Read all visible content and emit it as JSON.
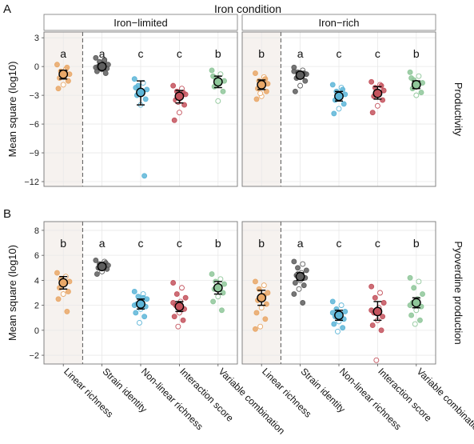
{
  "figure": {
    "header": "Iron condition",
    "panel_letters": [
      "A",
      "B"
    ],
    "x_categories": [
      "Linear richness",
      "Strain identity",
      "Non-linear richness",
      "Interaction score",
      "Variable combination"
    ],
    "colors": {
      "Linear richness": "#e9a868",
      "Strain identity": "#5e5e5e",
      "Non-linear richness": "#5eb6d8",
      "Interaction score": "#c4545e",
      "Variable combination": "#8fc79a",
      "highlight": "#f6f2ef",
      "grid": "#e8e8e8",
      "border": "#777777"
    }
  },
  "chart_data": [
    {
      "type": "scatter",
      "panel": "A",
      "facet": "Iron−limited",
      "row_label": "Productivity",
      "ylabel": "Mean square (log10)",
      "ylim": [
        -12.5,
        3.6
      ],
      "yticks": [
        3,
        0,
        -3,
        -6,
        -9,
        -12
      ],
      "series": [
        {
          "name": "Linear richness",
          "mean": -0.8,
          "ci": [
            -1.3,
            -0.4
          ],
          "letter": "a",
          "points": [
            0.2,
            -0.3,
            -0.5,
            -0.8,
            -1.0,
            -1.2,
            -1.5,
            -1.9,
            -2.3,
            -0.1,
            -0.6
          ]
        },
        {
          "name": "Strain identity",
          "mean": 0.0,
          "ci": [
            -0.3,
            0.3
          ],
          "letter": "a",
          "points": [
            0.9,
            0.6,
            0.5,
            0.2,
            0.1,
            0.0,
            -0.2,
            -0.3,
            -0.5,
            -0.7,
            0.3,
            -0.1,
            0.7
          ]
        },
        {
          "name": "Non-linear richness",
          "mean": -2.7,
          "ci": [
            -4.0,
            -1.5
          ],
          "letter": "c",
          "points": [
            -1.3,
            -1.7,
            -2.0,
            -2.4,
            -2.7,
            -3.0,
            -3.4,
            -4.0,
            -2.2,
            -11.4
          ]
        },
        {
          "name": "Interaction score",
          "mean": -3.1,
          "ci": [
            -3.8,
            -2.5
          ],
          "letter": "c",
          "points": [
            -2.0,
            -2.3,
            -2.6,
            -2.9,
            -3.2,
            -3.5,
            -4.0,
            -4.8,
            -5.6,
            -2.7,
            -3.7
          ]
        },
        {
          "name": "Variable combination",
          "mean": -1.6,
          "ci": [
            -2.2,
            -1.0
          ],
          "letter": "b",
          "points": [
            -0.4,
            -0.8,
            -1.2,
            -1.5,
            -1.8,
            -2.1,
            -2.6,
            -3.6,
            -1.0
          ]
        }
      ]
    },
    {
      "type": "scatter",
      "panel": "A",
      "facet": "Iron−rich",
      "row_label": "Productivity",
      "ylabel": "Mean square (log10)",
      "ylim": [
        -12.5,
        3.6
      ],
      "yticks": [
        3,
        0,
        -3,
        -6,
        -9,
        -12
      ],
      "series": [
        {
          "name": "Linear richness",
          "mean": -1.9,
          "ci": [
            -2.4,
            -1.4
          ],
          "letter": "b",
          "points": [
            -0.7,
            -1.1,
            -1.5,
            -1.8,
            -2.0,
            -2.3,
            -2.6,
            -3.1,
            -3.4,
            -1.3,
            -2.8
          ]
        },
        {
          "name": "Strain identity",
          "mean": -0.9,
          "ci": [
            -1.2,
            -0.6
          ],
          "letter": "a",
          "points": [
            -0.1,
            -0.4,
            -0.6,
            -0.8,
            -1.0,
            -1.2,
            -1.5,
            -2.0,
            -2.6,
            -0.7,
            -1.1,
            -0.5
          ]
        },
        {
          "name": "Non-linear richness",
          "mean": -3.1,
          "ci": [
            -3.6,
            -2.6
          ],
          "letter": "c",
          "points": [
            -1.9,
            -2.2,
            -2.6,
            -2.9,
            -3.2,
            -3.5,
            -3.9,
            -4.4,
            -4.9,
            -2.4,
            -3.3
          ]
        },
        {
          "name": "Interaction score",
          "mean": -2.8,
          "ci": [
            -3.4,
            -2.1
          ],
          "letter": "c",
          "points": [
            -1.6,
            -1.9,
            -2.2,
            -2.5,
            -2.8,
            -3.1,
            -3.5,
            -4.1,
            -4.8,
            -2.0
          ]
        },
        {
          "name": "Variable combination",
          "mean": -1.9,
          "ci": [
            -2.3,
            -1.5
          ],
          "letter": "b",
          "points": [
            -0.6,
            -1.0,
            -1.4,
            -1.7,
            -2.0,
            -2.3,
            -2.7,
            -3.0,
            -1.2
          ]
        }
      ]
    },
    {
      "type": "scatter",
      "panel": "B",
      "facet": "Iron−limited",
      "row_label": "Pyoverdine production",
      "ylabel": "Mean square (log10)",
      "ylim": [
        -2.7,
        8.7
      ],
      "yticks": [
        8,
        6,
        4,
        2,
        0,
        -2
      ],
      "series": [
        {
          "name": "Linear richness",
          "mean": 3.8,
          "ci": [
            3.3,
            4.3
          ],
          "letter": "b",
          "points": [
            4.6,
            4.3,
            4.1,
            3.9,
            3.7,
            3.4,
            3.1,
            2.9,
            2.5,
            1.5,
            4.0
          ]
        },
        {
          "name": "Strain identity",
          "mean": 5.1,
          "ci": [
            4.9,
            5.3
          ],
          "letter": "a",
          "points": [
            5.6,
            5.5,
            5.3,
            5.2,
            5.1,
            5.0,
            4.9,
            4.7,
            4.5,
            5.4,
            5.0
          ]
        },
        {
          "name": "Non-linear richness",
          "mean": 2.1,
          "ci": [
            1.7,
            2.5
          ],
          "letter": "c",
          "points": [
            3.1,
            2.9,
            2.7,
            2.5,
            2.3,
            2.1,
            1.9,
            1.7,
            1.4,
            1.1,
            0.6,
            2.0,
            2.6
          ]
        },
        {
          "name": "Interaction score",
          "mean": 1.9,
          "ci": [
            1.5,
            2.3
          ],
          "letter": "c",
          "points": [
            3.8,
            3.4,
            2.9,
            2.6,
            2.3,
            2.0,
            1.7,
            1.4,
            1.1,
            0.8,
            0.3,
            2.2
          ]
        },
        {
          "name": "Variable combination",
          "mean": 3.4,
          "ci": [
            2.9,
            3.9
          ],
          "letter": "b",
          "points": [
            4.5,
            4.1,
            3.9,
            3.7,
            3.5,
            3.3,
            3.0,
            2.7,
            2.3,
            1.6,
            3.8
          ]
        }
      ]
    },
    {
      "type": "scatter",
      "panel": "B",
      "facet": "Iron−rich",
      "row_label": "Pyoverdine production",
      "ylabel": "Mean square (log10)",
      "ylim": [
        -2.7,
        8.7
      ],
      "yticks": [
        8,
        6,
        4,
        2,
        0,
        -2
      ],
      "series": [
        {
          "name": "Linear richness",
          "mean": 2.6,
          "ci": [
            2.0,
            3.2
          ],
          "letter": "b",
          "points": [
            3.9,
            3.6,
            3.3,
            3.0,
            2.7,
            2.4,
            2.1,
            1.8,
            1.4,
            0.9,
            0.3,
            0.1,
            2.8
          ]
        },
        {
          "name": "Strain identity",
          "mean": 4.3,
          "ci": [
            4.0,
            4.6
          ],
          "letter": "a",
          "points": [
            5.5,
            5.3,
            5.0,
            4.8,
            4.6,
            4.4,
            4.2,
            4.0,
            3.8,
            3.6,
            3.3,
            2.9,
            2.2,
            4.5
          ]
        },
        {
          "name": "Non-linear richness",
          "mean": 1.2,
          "ci": [
            0.8,
            1.6
          ],
          "letter": "c",
          "points": [
            2.3,
            2.0,
            1.7,
            1.5,
            1.3,
            1.1,
            0.9,
            0.7,
            0.5,
            0.2,
            -0.1,
            1.4
          ]
        },
        {
          "name": "Interaction score",
          "mean": 1.5,
          "ci": [
            0.8,
            2.3
          ],
          "letter": "c",
          "points": [
            3.5,
            3.0,
            2.6,
            2.2,
            1.8,
            1.4,
            1.1,
            0.8,
            0.4,
            0.0,
            -2.4,
            1.6
          ]
        },
        {
          "name": "Variable combination",
          "mean": 2.2,
          "ci": [
            1.8,
            2.6
          ],
          "letter": "b",
          "points": [
            4.2,
            3.9,
            3.4,
            2.9,
            2.5,
            2.2,
            1.9,
            1.6,
            1.2,
            0.8,
            0.5,
            2.0
          ]
        }
      ]
    }
  ]
}
